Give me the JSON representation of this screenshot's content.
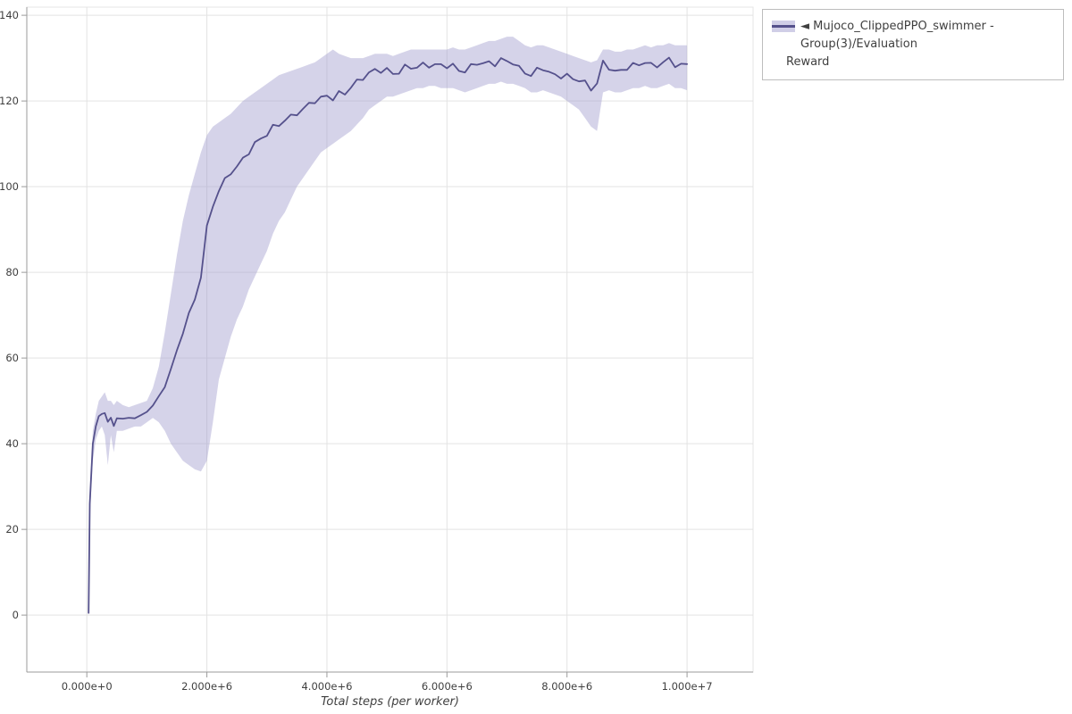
{
  "figure": {
    "background": "#ffffff",
    "grid_color": "#e3e3e3",
    "axis_color": "#9b9b9b",
    "tick_label_color": "#3f3f3f"
  },
  "legend": {
    "lines": [
      "◄ Mujoco_ClippedPPO_swimmer - Group(3)/Evaluation",
      "Reward"
    ],
    "line_color": "#55518c",
    "band_color": "#a29dcf"
  },
  "chart_data": {
    "type": "line",
    "title": "",
    "xlabel": "Total steps (per worker)",
    "ylabel": "",
    "x_units": "steps (values in millions)",
    "xlim": [
      -1.0,
      11.1
    ],
    "ylim": [
      -13.3,
      141.9
    ],
    "grid": true,
    "legend_position": "top-right-outside",
    "x_ticks": [
      0,
      2,
      4,
      6,
      8,
      10
    ],
    "x_tick_labels": [
      "0.000e+0",
      "2.000e+6",
      "4.000e+6",
      "6.000e+6",
      "8.000e+6",
      "1.000e+7"
    ],
    "y_ticks": [
      0,
      20,
      40,
      60,
      80,
      100,
      120,
      140
    ],
    "y_tick_labels": [
      "0",
      "20",
      "40",
      "60",
      "80",
      "100",
      "120",
      "140"
    ],
    "series": [
      {
        "name": "Mujoco_ClippedPPO_swimmer - Group(3)/Evaluation Reward",
        "color": "#55518c",
        "band_color": "#a29dcf",
        "band_opacity": 0.45,
        "x": [
          0.03,
          0.05,
          0.1,
          0.15,
          0.2,
          0.25,
          0.3,
          0.35,
          0.4,
          0.45,
          0.5,
          0.6,
          0.7,
          0.8,
          0.9,
          1.0,
          1.1,
          1.2,
          1.3,
          1.4,
          1.5,
          1.6,
          1.7,
          1.8,
          1.9,
          2.0,
          2.1,
          2.2,
          2.3,
          2.4,
          2.5,
          2.6,
          2.7,
          2.8,
          2.9,
          3.0,
          3.1,
          3.2,
          3.3,
          3.4,
          3.5,
          3.6,
          3.7,
          3.8,
          3.9,
          4.0,
          4.1,
          4.2,
          4.3,
          4.4,
          4.5,
          4.6,
          4.7,
          4.8,
          4.9,
          5.0,
          5.1,
          5.2,
          5.3,
          5.4,
          5.5,
          5.6,
          5.7,
          5.8,
          5.9,
          6.0,
          6.1,
          6.2,
          6.3,
          6.4,
          6.5,
          6.6,
          6.7,
          6.8,
          6.9,
          7.0,
          7.1,
          7.2,
          7.3,
          7.4,
          7.5,
          7.6,
          7.7,
          7.8,
          7.9,
          8.0,
          8.1,
          8.2,
          8.3,
          8.4,
          8.5,
          8.6,
          8.7,
          8.8,
          8.9,
          9.0,
          9.1,
          9.2,
          9.3,
          9.4,
          9.5,
          9.6,
          9.7,
          9.8,
          9.9,
          10.0
        ],
        "mean": [
          0.5,
          26,
          40,
          44,
          46.5,
          47.5,
          47,
          45.5,
          46.5,
          44,
          46.5,
          46,
          46,
          46.5,
          46.5,
          47.5,
          49.5,
          50.5,
          53.5,
          57.5,
          61,
          66,
          70,
          73,
          79,
          90,
          95,
          99,
          101,
          103,
          104.5,
          106,
          108,
          110,
          111,
          112.5,
          114,
          114.5,
          116,
          116.5,
          117.5,
          118.5,
          119.5,
          120.5,
          121,
          121.5,
          121,
          122,
          122,
          123.5,
          124.5,
          125.5,
          126.5,
          127,
          127,
          127,
          126,
          126.5,
          127.5,
          127.5,
          127.5,
          128,
          128,
          128,
          128,
          128,
          128,
          127,
          127,
          128,
          129,
          129,
          129,
          129,
          130,
          129.5,
          129.5,
          128,
          127,
          126.5,
          127.5,
          128,
          127,
          126,
          126,
          126,
          125,
          125,
          124,
          122.5,
          124,
          128.5,
          127.5,
          126.5,
          126.5,
          127.5,
          128,
          128,
          129,
          128,
          128,
          129,
          129.5,
          128.5,
          128.5,
          128.5
        ],
        "lower": [
          0.5,
          23,
          36,
          41,
          43,
          44,
          42,
          35,
          42,
          38,
          43,
          43,
          43.5,
          44,
          44,
          45,
          46,
          45,
          43,
          40,
          38,
          36,
          35,
          34,
          33.5,
          36,
          45,
          55,
          60,
          65,
          69,
          72,
          76,
          79,
          82,
          85,
          89,
          92,
          94,
          97,
          100,
          102,
          104,
          106,
          108,
          109,
          110,
          111,
          112,
          113,
          114.5,
          116,
          118,
          119,
          120,
          121,
          121,
          121.5,
          122,
          122.5,
          123,
          123,
          123.5,
          123.5,
          123,
          123,
          123,
          122.5,
          122,
          122.5,
          123,
          123.5,
          124,
          124,
          124.5,
          124,
          124,
          123.5,
          123,
          122,
          122,
          122.5,
          122,
          121.5,
          121,
          120,
          119,
          118,
          116,
          114,
          113,
          122,
          122.5,
          122,
          122,
          122.5,
          123,
          123,
          123.5,
          123,
          123,
          123.5,
          124,
          123,
          123,
          122.5
        ],
        "upper": [
          0.5,
          28,
          43,
          47,
          50,
          51,
          52,
          50,
          50,
          49,
          50,
          49,
          48.5,
          49,
          49.5,
          50,
          53,
          58,
          66,
          75,
          84,
          92,
          98,
          103,
          108,
          112,
          114,
          115,
          116,
          117,
          118.5,
          120,
          121,
          122,
          123,
          124,
          125,
          126,
          126.5,
          127,
          127.5,
          128,
          128.5,
          129,
          130,
          131,
          132,
          131,
          130.5,
          130,
          130,
          130,
          130.5,
          131,
          131,
          131,
          130.5,
          131,
          131.5,
          132,
          132,
          132,
          132,
          132,
          132,
          132,
          132.5,
          132,
          132,
          132.5,
          133,
          133.5,
          134,
          134,
          134.5,
          135,
          135,
          134,
          133,
          132.5,
          133,
          133,
          132.5,
          132,
          131.5,
          131,
          130.5,
          130,
          129.5,
          129,
          129.5,
          132,
          132,
          131.5,
          131.5,
          132,
          132,
          132.5,
          133,
          132.5,
          133,
          133,
          133.5,
          133,
          133,
          133
        ]
      }
    ]
  }
}
